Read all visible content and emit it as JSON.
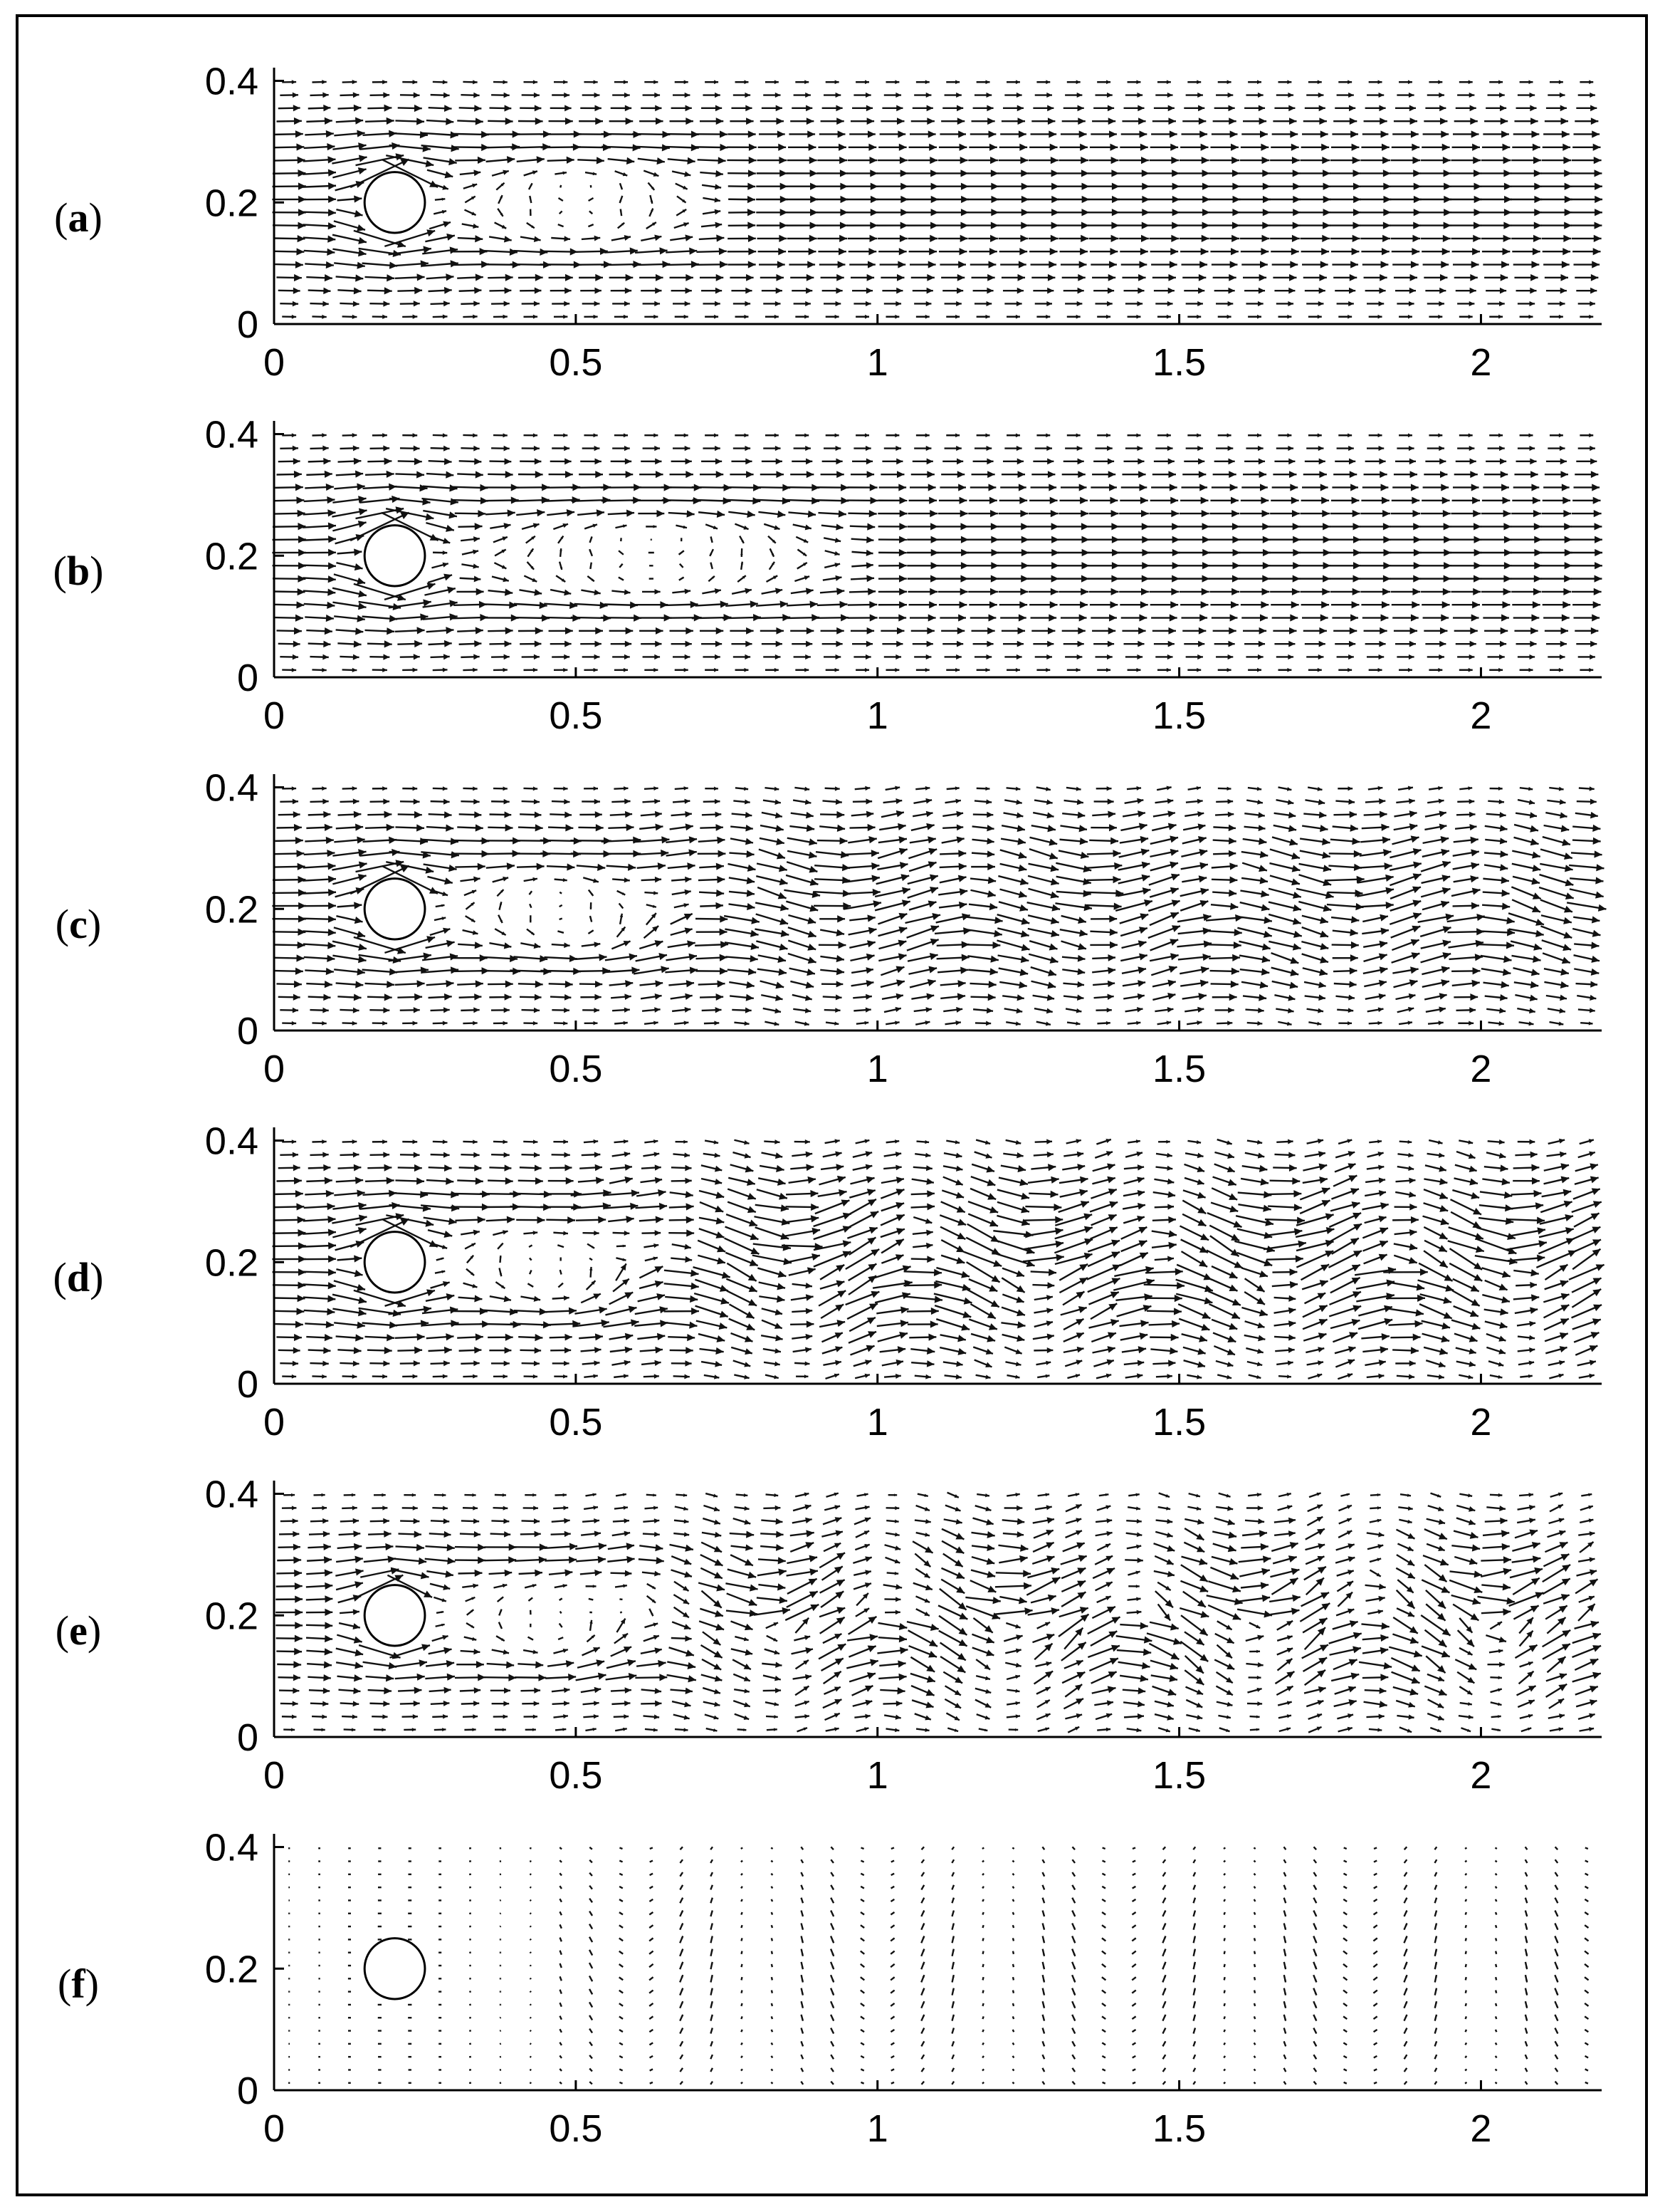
{
  "chart_data": [
    {
      "type": "quiver",
      "panel_label": {
        "open": "(",
        "letter": "a",
        "close": ")"
      },
      "xlim": [
        0,
        2.2
      ],
      "ylim": [
        0,
        0.41
      ],
      "xticks": [
        0,
        0.5,
        1,
        1.5,
        2
      ],
      "xtick_labels": [
        "0",
        "0.5",
        "1",
        "1.5",
        "2"
      ],
      "yticks": [
        0,
        0.2,
        0.4
      ],
      "ytick_labels": [
        "0",
        "0.2",
        "0.4"
      ],
      "cylinder": {
        "center": [
          0.2,
          0.2
        ],
        "radius": 0.05
      },
      "flow": {
        "regime": "steady",
        "wake_length": 0.6,
        "wave_amplitude": 0.0,
        "wavelength": 0.4,
        "inflow_strength": 1.0,
        "downstream_strength": 0.9
      }
    },
    {
      "type": "quiver",
      "panel_label": {
        "open": "(",
        "letter": "b",
        "close": ")"
      },
      "xlim": [
        0,
        2.2
      ],
      "ylim": [
        0,
        0.41
      ],
      "xticks": [
        0,
        0.5,
        1,
        1.5,
        2
      ],
      "xtick_labels": [
        "0",
        "0.5",
        "1",
        "1.5",
        "2"
      ],
      "yticks": [
        0,
        0.2,
        0.4
      ],
      "ytick_labels": [
        "0",
        "0.2",
        "0.4"
      ],
      "cylinder": {
        "center": [
          0.2,
          0.2
        ],
        "radius": 0.05
      },
      "flow": {
        "regime": "steady",
        "wake_length": 0.85,
        "wave_amplitude": 0.0,
        "wavelength": 0.4,
        "inflow_strength": 1.0,
        "downstream_strength": 1.0
      }
    },
    {
      "type": "quiver",
      "panel_label": {
        "open": "(",
        "letter": "c",
        "close": ")"
      },
      "xlim": [
        0,
        2.2
      ],
      "ylim": [
        0,
        0.41
      ],
      "xticks": [
        0,
        0.5,
        1,
        1.5,
        2
      ],
      "xtick_labels": [
        "0",
        "0.5",
        "1",
        "1.5",
        "2"
      ],
      "yticks": [
        0,
        0.2,
        0.4
      ],
      "ytick_labels": [
        "0",
        "0.2",
        "0.4"
      ],
      "cylinder": {
        "center": [
          0.2,
          0.2
        ],
        "radius": 0.05
      },
      "flow": {
        "regime": "shedding",
        "wake_length": 0.55,
        "wave_amplitude": 0.35,
        "wavelength": 0.42,
        "inflow_strength": 1.0,
        "downstream_strength": 1.0
      }
    },
    {
      "type": "quiver",
      "panel_label": {
        "open": "(",
        "letter": "d",
        "close": ")"
      },
      "xlim": [
        0,
        2.2
      ],
      "ylim": [
        0,
        0.41
      ],
      "xticks": [
        0,
        0.5,
        1,
        1.5,
        2
      ],
      "xtick_labels": [
        "0",
        "0.5",
        "1",
        "1.5",
        "2"
      ],
      "yticks": [
        0,
        0.2,
        0.4
      ],
      "ytick_labels": [
        "0",
        "0.2",
        "0.4"
      ],
      "cylinder": {
        "center": [
          0.2,
          0.2
        ],
        "radius": 0.05
      },
      "flow": {
        "regime": "shedding",
        "wake_length": 0.5,
        "wave_amplitude": 0.6,
        "wavelength": 0.4,
        "inflow_strength": 1.0,
        "downstream_strength": 0.95
      }
    },
    {
      "type": "quiver",
      "panel_label": {
        "open": "(",
        "letter": "e",
        "close": ")"
      },
      "xlim": [
        0,
        2.2
      ],
      "ylim": [
        0,
        0.41
      ],
      "xticks": [
        0,
        0.5,
        1,
        1.5,
        2
      ],
      "xtick_labels": [
        "0",
        "0.5",
        "1",
        "1.5",
        "2"
      ],
      "yticks": [
        0,
        0.2,
        0.4
      ],
      "ytick_labels": [
        "0",
        "0.2",
        "0.4"
      ],
      "cylinder": {
        "center": [
          0.2,
          0.2
        ],
        "radius": 0.05
      },
      "flow": {
        "regime": "shedding",
        "wake_length": 0.55,
        "wave_amplitude": 0.8,
        "wavelength": 0.4,
        "inflow_strength": 0.8,
        "downstream_strength": 0.7
      }
    },
    {
      "type": "quiver",
      "panel_label": {
        "open": "(",
        "letter": "f",
        "close": ")"
      },
      "xlim": [
        0,
        2.2
      ],
      "ylim": [
        0,
        0.41
      ],
      "xticks": [
        0,
        0.5,
        1,
        1.5,
        2
      ],
      "xtick_labels": [
        "0",
        "0.5",
        "1",
        "1.5",
        "2"
      ],
      "yticks": [
        0,
        0.2,
        0.4
      ],
      "ytick_labels": [
        "0",
        "0.2",
        "0.4"
      ],
      "cylinder": {
        "center": [
          0.2,
          0.2
        ],
        "radius": 0.05
      },
      "flow": {
        "regime": "weak",
        "wake_length": 0.3,
        "wave_amplitude": 0.9,
        "wavelength": 0.4,
        "inflow_strength": 0.12,
        "downstream_strength": 0.28
      }
    }
  ]
}
